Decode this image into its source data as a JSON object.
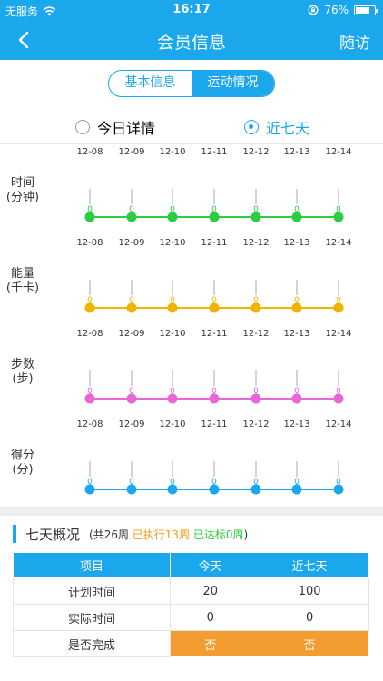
{
  "status_bar": {
    "carrier": "无服务",
    "time": "16:17",
    "battery": "76%",
    "battery_level": 0.76,
    "icons": [
      "wifi-icon",
      "orientation-lock-icon",
      "battery-icon"
    ]
  },
  "nav": {
    "title": "会员信息",
    "right_action": "随访",
    "back_icon": "chevron-left-icon"
  },
  "tabs": [
    {
      "label": "基本信息",
      "active": false
    },
    {
      "label": "运动情况",
      "active": true
    }
  ],
  "period_options": [
    {
      "label": "今日详情",
      "selected": false
    },
    {
      "label": "近七天",
      "selected": true
    }
  ],
  "chart_data": {
    "type": "line",
    "x": [
      "12-08",
      "12-09",
      "12-10",
      "12-11",
      "12-12",
      "12-13",
      "12-14"
    ],
    "series": [
      {
        "name": "时间\n(分钟)",
        "label_line1": "时间",
        "label_line2": "(分钟)",
        "values": [
          0,
          0,
          0,
          0,
          0,
          0,
          0
        ],
        "color": "#2ecc40"
      },
      {
        "name": "能量\n(千卡)",
        "label_line1": "能量",
        "label_line2": "(千卡)",
        "values": [
          0,
          0,
          0,
          0,
          0,
          0,
          0
        ],
        "color": "#f0b400"
      },
      {
        "name": "步数\n(步)",
        "label_line1": "步数",
        "label_line2": "(步)",
        "values": [
          0,
          0,
          0,
          0,
          0,
          0,
          0
        ],
        "color": "#e667d6"
      },
      {
        "name": "得分\n(分)",
        "label_line1": "得分",
        "label_line2": "(分)",
        "values": [
          0,
          0,
          0,
          0,
          0,
          0,
          0
        ],
        "color": "#1aa7ec"
      }
    ]
  },
  "summary": {
    "title": "七天概况",
    "prefix": "(共26周",
    "executed": "已执行13周",
    "achieved": "已达标0周",
    "suffix": ")",
    "colors": {
      "executed": "#f39c12",
      "achieved": "#2ecc40"
    }
  },
  "table": {
    "headers": [
      "项目",
      "今天",
      "近七天"
    ],
    "rows": [
      [
        "计划时间",
        "20",
        "100"
      ],
      [
        "实际时间",
        "0",
        "0"
      ],
      [
        "是否完成",
        "否",
        "否"
      ]
    ]
  }
}
